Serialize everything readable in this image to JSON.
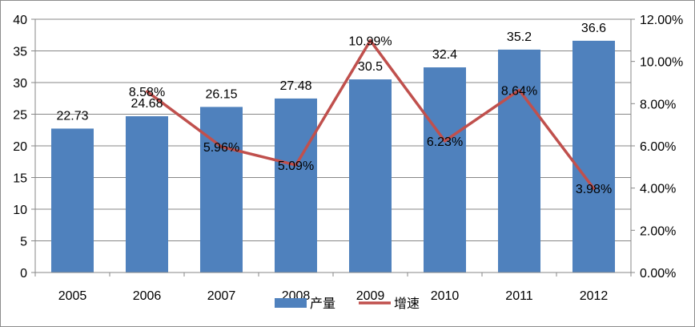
{
  "chart_data": {
    "type": "bar",
    "categories": [
      "2005",
      "2006",
      "2007",
      "2008",
      "2009",
      "2010",
      "2011",
      "2012"
    ],
    "series": [
      {
        "name": "产量",
        "type": "bar",
        "axis": "left",
        "values": [
          22.73,
          24.68,
          26.15,
          27.48,
          30.5,
          32.4,
          35.2,
          36.6
        ],
        "labels": [
          "22.73",
          "24.68",
          "26.15",
          "27.48",
          "30.5",
          "32.4",
          "35.2",
          "36.6"
        ],
        "color": "#4f81bd"
      },
      {
        "name": "增速",
        "type": "line",
        "axis": "right",
        "x": [
          "2006",
          "2007",
          "2008",
          "2009",
          "2010",
          "2011",
          "2012"
        ],
        "values": [
          8.58,
          5.96,
          5.09,
          10.99,
          6.23,
          8.64,
          3.98
        ],
        "labels": [
          "8.58%",
          "5.96%",
          "5.09%",
          "10.99%",
          "6.23%",
          "8.64%",
          "3.98%"
        ],
        "color": "#c0504d"
      }
    ],
    "y_left": {
      "min": 0,
      "max": 40,
      "ticks": [
        "0",
        "5",
        "10",
        "15",
        "20",
        "25",
        "30",
        "35",
        "40"
      ]
    },
    "y_right": {
      "min": 0,
      "max": 12,
      "ticks": [
        "0.00%",
        "2.00%",
        "4.00%",
        "6.00%",
        "8.00%",
        "10.00%",
        "12.00%"
      ]
    },
    "grid": true,
    "legend": {
      "position": "bottom",
      "items": [
        "产量",
        "增速"
      ]
    }
  }
}
